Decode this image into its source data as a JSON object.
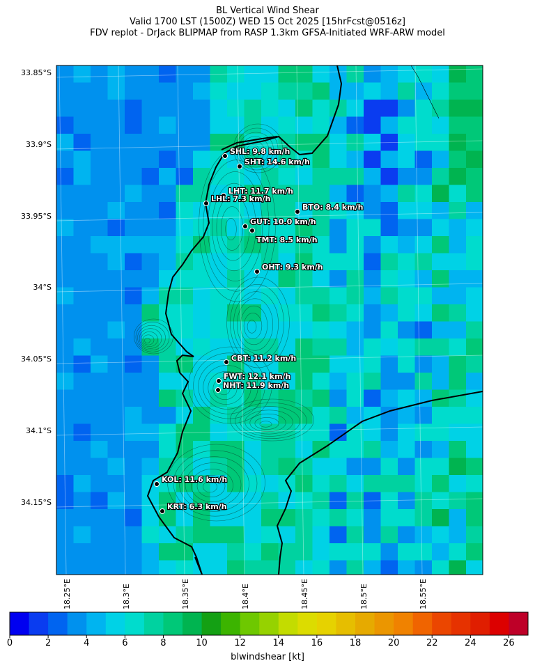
{
  "header": {
    "title": "BL Vertical Wind Shear",
    "subtitle": "Valid 1700 LST (1500Z) WED 15 Oct 2025 [15hrFcst@0516z]",
    "source": "FDV replot - DrJack BLIPMAP from RASP 1.3km GFSA-Initiated WRF-ARW model"
  },
  "axes": {
    "y_ticks": [
      "33.85°S",
      "33.9°S",
      "33.95°S",
      "34°S",
      "34.05°S",
      "34.1°S",
      "34.15°S"
    ],
    "x_ticks": [
      "18.25°E",
      "18.3°E",
      "18.35°E",
      "18.4°E",
      "18.45°E",
      "18.5°E",
      "18.55°E"
    ]
  },
  "stations": [
    {
      "code": "SHL",
      "label": "SHL: 9.8 km/h",
      "value_kmh": 9.8
    },
    {
      "code": "SHT",
      "label": "SHT: 14.6 km/h",
      "value_kmh": 14.6
    },
    {
      "code": "LHT",
      "label": "LHT: 11.7 km/h",
      "value_kmh": 11.7
    },
    {
      "code": "LHL",
      "label": "LHL: 7.3 km/h",
      "value_kmh": 7.3
    },
    {
      "code": "BTO",
      "label": "BTO: 8.4 km/h",
      "value_kmh": 8.4
    },
    {
      "code": "GUT",
      "label": "GUT: 10.0 km/h",
      "value_kmh": 10.0
    },
    {
      "code": "TMT",
      "label": "TMT: 8.5 km/h",
      "value_kmh": 8.5
    },
    {
      "code": "OHT",
      "label": "OHT: 9.3 km/h",
      "value_kmh": 9.3
    },
    {
      "code": "CBT",
      "label": "CBT: 11.2 km/h",
      "value_kmh": 11.2
    },
    {
      "code": "FWT",
      "label": "FWT: 12.1 km/h",
      "value_kmh": 12.1
    },
    {
      "code": "NHT",
      "label": "NHT: 11.9 km/h",
      "value_kmh": 11.9
    },
    {
      "code": "KOL",
      "label": "KOL: 11.6 km/h",
      "value_kmh": 11.6
    },
    {
      "code": "KRT",
      "label": "KRT: 6.3 km/h",
      "value_kmh": 6.3
    }
  ],
  "colorbar": {
    "label": "blwindshear [kt]",
    "ticks": [
      "0",
      "2",
      "4",
      "6",
      "8",
      "10",
      "12",
      "14",
      "16",
      "18",
      "20",
      "22",
      "24",
      "26"
    ],
    "min": 0,
    "max": 27,
    "colors": [
      "#0000f0",
      "#0a3cf0",
      "#0064f0",
      "#0091ee",
      "#00b4f0",
      "#00d2e6",
      "#00dccd",
      "#00d2a0",
      "#00c878",
      "#00b450",
      "#14a014",
      "#3cb400",
      "#6ec800",
      "#96d200",
      "#c3dc00",
      "#dcdc00",
      "#e6d200",
      "#e6be00",
      "#e6aa00",
      "#eb9600",
      "#f08200",
      "#f06400",
      "#eb4600",
      "#e63200",
      "#e01e00",
      "#dc0000",
      "#be0028"
    ]
  },
  "map": {
    "colors": {
      "ocean": "#0091ee",
      "coast": "#000000",
      "station": "#000000",
      "label": "#ffffff"
    }
  }
}
